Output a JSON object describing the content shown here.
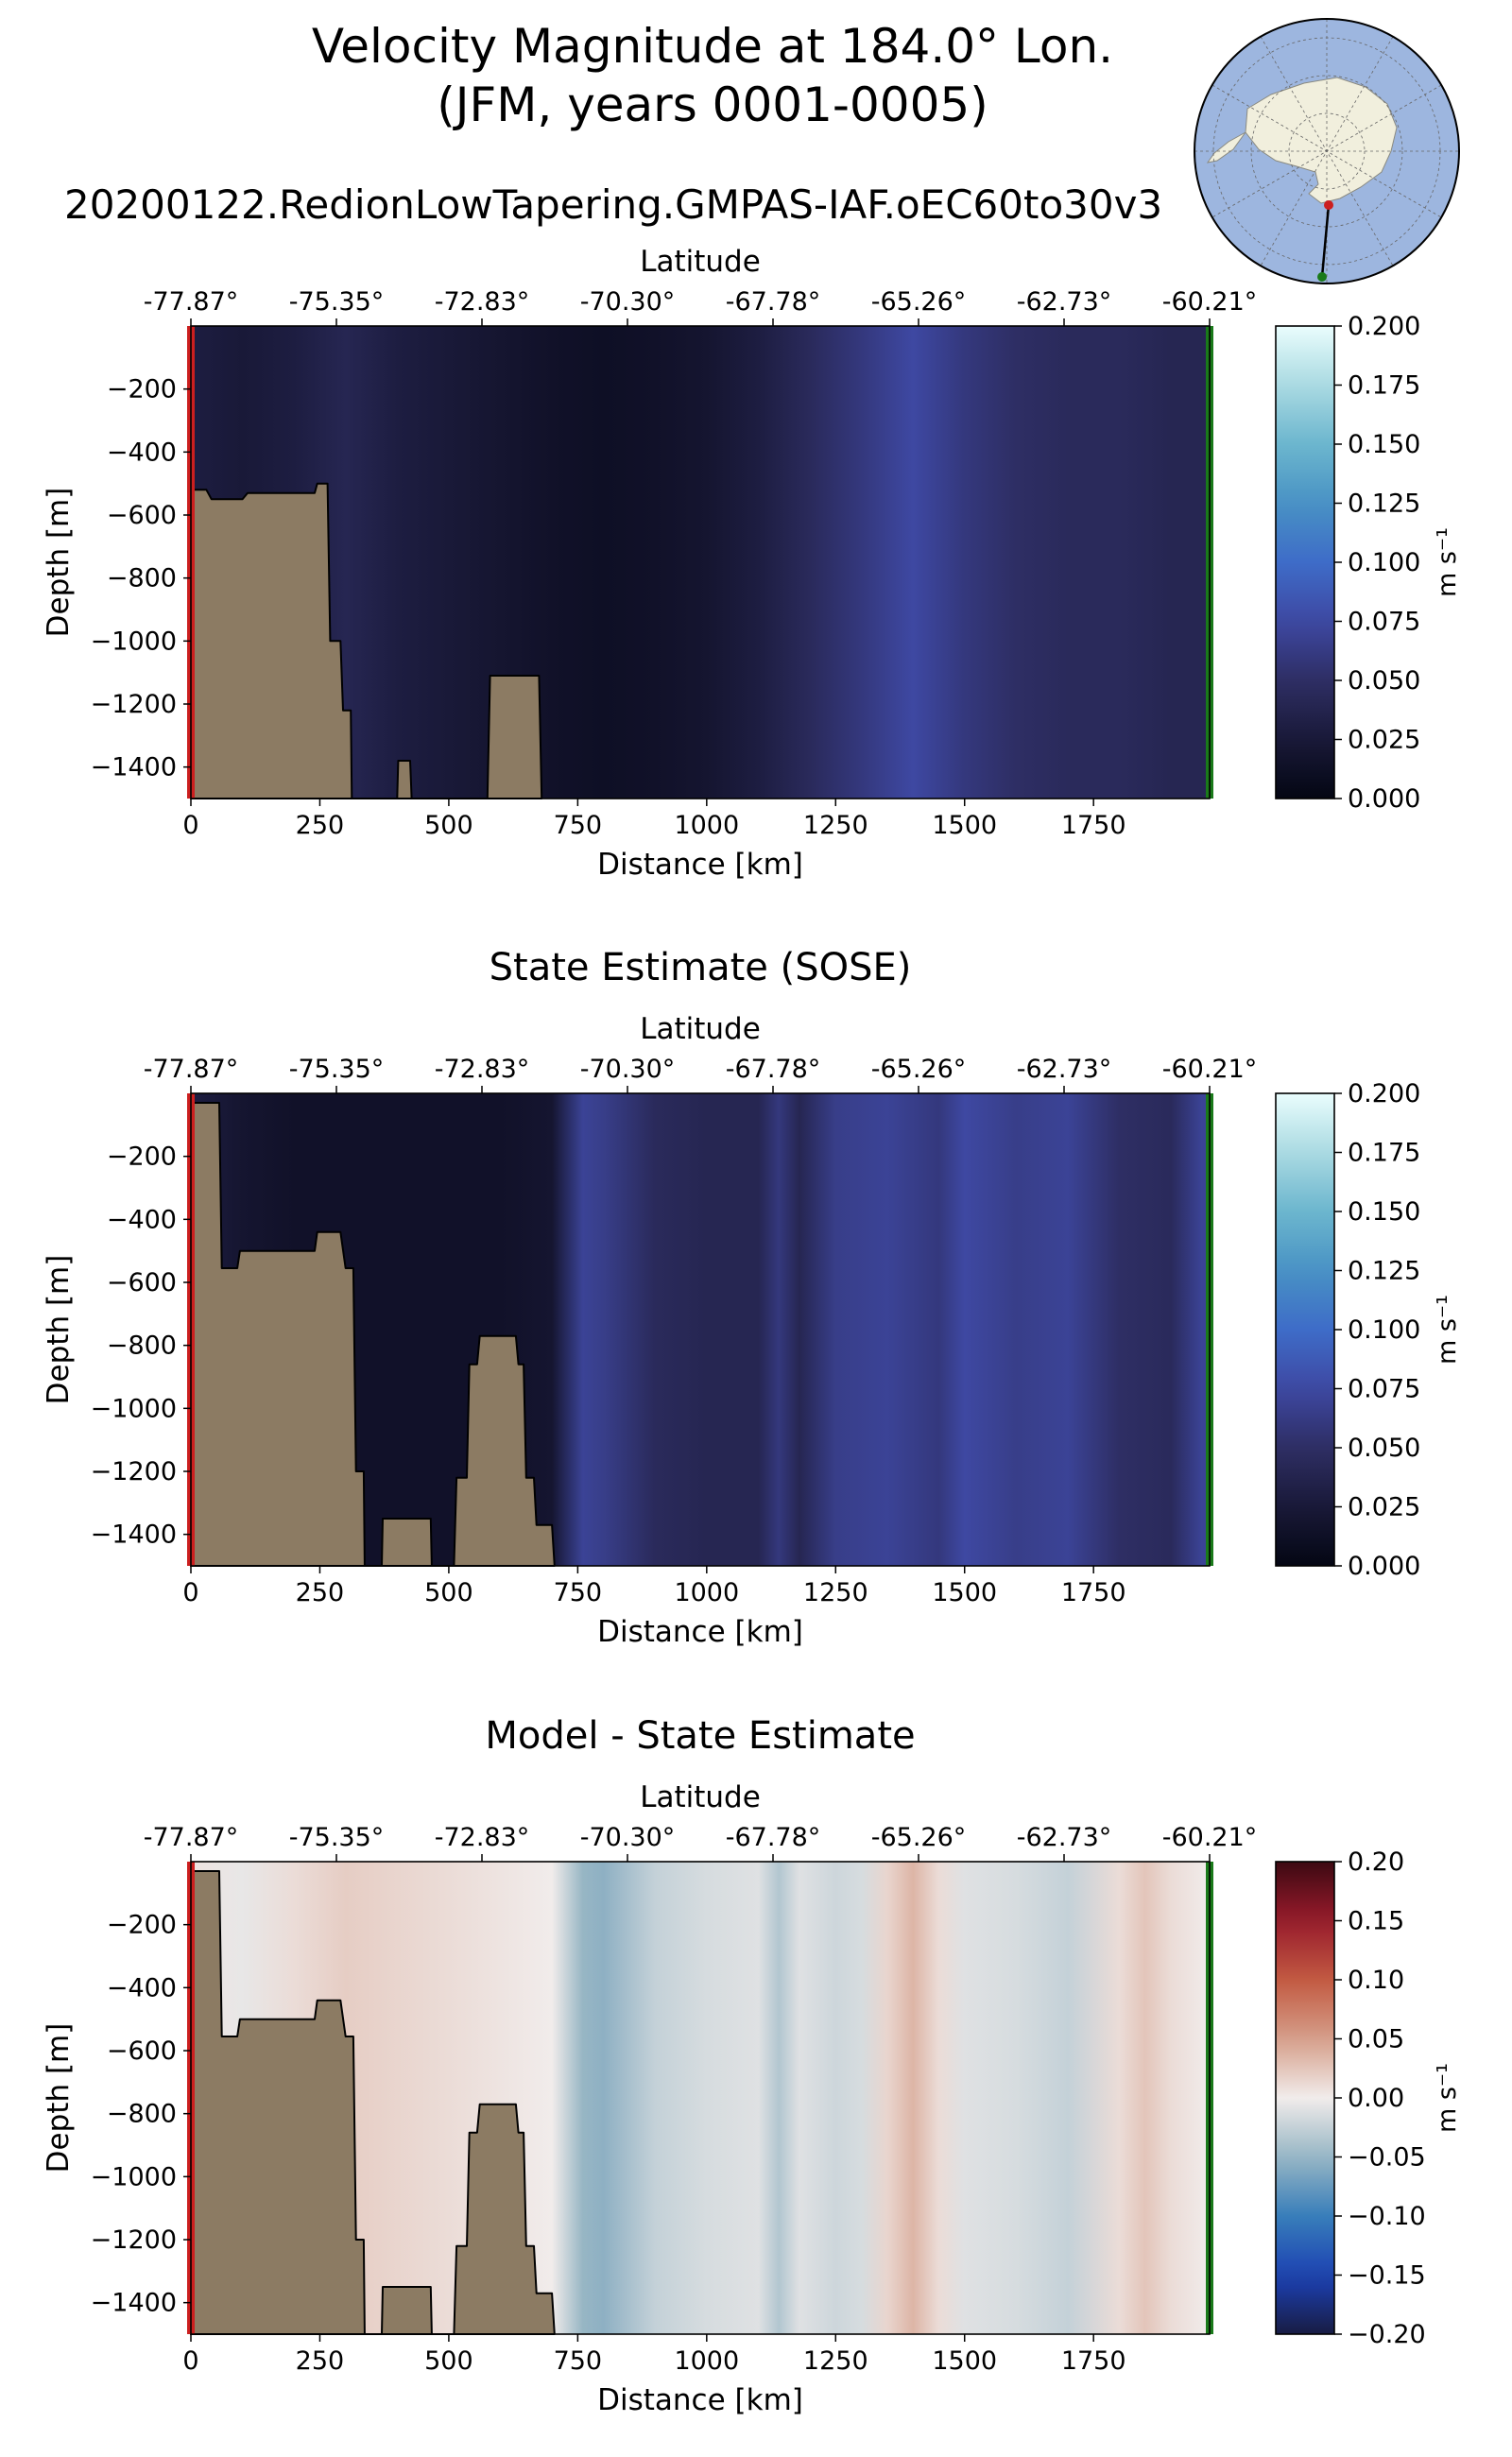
{
  "title": {
    "line1": "Velocity Magnitude at 184.0° Lon.",
    "line2": "(JFM, years 0001-0005)",
    "run_name": "20200122.RedionLowTapering.GMPAS-IAF.oEC60to30v3"
  },
  "colors": {
    "land": "#8c7b63",
    "start_marker": "#cc1f1f",
    "end_marker": "#1a7a1a",
    "globe_ocean": "#9db6df",
    "globe_land": "#f1efdd"
  },
  "chart_data": [
    {
      "type": "heatmap",
      "title": "",
      "xlabel": "Distance [km]",
      "ylabel": "Depth [m]",
      "top_xlabel": "Latitude",
      "xlim": [
        0,
        1975
      ],
      "ylim": [
        -1500,
        0
      ],
      "xticks": [
        "0",
        "250",
        "500",
        "750",
        "1000",
        "1250",
        "1500",
        "1750"
      ],
      "yticks": [
        "−200",
        "−400",
        "−600",
        "−800",
        "−1000",
        "−1200",
        "−1400"
      ],
      "top_ticks": [
        "-77.87°",
        "-75.35°",
        "-72.83°",
        "-70.30°",
        "-67.78°",
        "-65.26°",
        "-62.73°",
        "-60.21°"
      ],
      "colorbar": {
        "label": "m s⁻¹",
        "ticks": [
          "0.000",
          "0.025",
          "0.050",
          "0.075",
          "0.100",
          "0.125",
          "0.150",
          "0.175",
          "0.200"
        ],
        "range": [
          0,
          0.2
        ],
        "colormap": "ice"
      },
      "field_profile": [
        [
          0,
          0.03
        ],
        [
          100,
          0.025
        ],
        [
          200,
          0.03
        ],
        [
          300,
          0.04
        ],
        [
          400,
          0.03
        ],
        [
          500,
          0.025
        ],
        [
          600,
          0.02
        ],
        [
          700,
          0.015
        ],
        [
          800,
          0.012
        ],
        [
          900,
          0.015
        ],
        [
          1000,
          0.02
        ],
        [
          1100,
          0.03
        ],
        [
          1200,
          0.045
        ],
        [
          1300,
          0.06
        ],
        [
          1400,
          0.075
        ],
        [
          1500,
          0.06
        ],
        [
          1600,
          0.05
        ],
        [
          1700,
          0.045
        ],
        [
          1800,
          0.045
        ],
        [
          1900,
          0.04
        ],
        [
          1975,
          0.04
        ]
      ],
      "land_bathymetry": [
        [
          0,
          -520
        ],
        [
          30,
          -520
        ],
        [
          40,
          -550
        ],
        [
          100,
          -550
        ],
        [
          110,
          -530
        ],
        [
          240,
          -530
        ],
        [
          245,
          -500
        ],
        [
          265,
          -500
        ],
        [
          270,
          -1000
        ],
        [
          290,
          -1000
        ],
        [
          295,
          -1220
        ],
        [
          310,
          -1220
        ],
        [
          312,
          -1500
        ],
        [
          400,
          -1500
        ],
        [
          402,
          -1380
        ],
        [
          425,
          -1380
        ],
        [
          428,
          -1500
        ],
        [
          575,
          -1500
        ],
        [
          580,
          -1110
        ],
        [
          675,
          -1110
        ],
        [
          680,
          -1500
        ]
      ]
    },
    {
      "type": "heatmap",
      "title": "State Estimate (SOSE)",
      "xlabel": "Distance [km]",
      "ylabel": "Depth [m]",
      "top_xlabel": "Latitude",
      "xlim": [
        0,
        1975
      ],
      "ylim": [
        -1500,
        0
      ],
      "xticks": [
        "0",
        "250",
        "500",
        "750",
        "1000",
        "1250",
        "1500",
        "1750"
      ],
      "yticks": [
        "−200",
        "−400",
        "−600",
        "−800",
        "−1000",
        "−1200",
        "−1400"
      ],
      "top_ticks": [
        "-77.87°",
        "-75.35°",
        "-72.83°",
        "-70.30°",
        "-67.78°",
        "-65.26°",
        "-62.73°",
        "-60.21°"
      ],
      "colorbar": {
        "label": "m s⁻¹",
        "ticks": [
          "0.000",
          "0.025",
          "0.050",
          "0.075",
          "0.100",
          "0.125",
          "0.150",
          "0.175",
          "0.200"
        ],
        "range": [
          0,
          0.2
        ],
        "colormap": "ice"
      },
      "field_profile": [
        [
          0,
          0.03
        ],
        [
          100,
          0.02
        ],
        [
          200,
          0.015
        ],
        [
          300,
          0.015
        ],
        [
          400,
          0.015
        ],
        [
          500,
          0.015
        ],
        [
          600,
          0.015
        ],
        [
          700,
          0.02
        ],
        [
          760,
          0.07
        ],
        [
          800,
          0.065
        ],
        [
          900,
          0.045
        ],
        [
          1000,
          0.04
        ],
        [
          1100,
          0.04
        ],
        [
          1140,
          0.06
        ],
        [
          1180,
          0.04
        ],
        [
          1250,
          0.065
        ],
        [
          1350,
          0.07
        ],
        [
          1450,
          0.06
        ],
        [
          1500,
          0.075
        ],
        [
          1600,
          0.065
        ],
        [
          1700,
          0.07
        ],
        [
          1800,
          0.05
        ],
        [
          1900,
          0.045
        ],
        [
          1960,
          0.07
        ],
        [
          1975,
          0.07
        ]
      ],
      "land_bathymetry": [
        [
          0,
          -30
        ],
        [
          55,
          -30
        ],
        [
          60,
          -555
        ],
        [
          90,
          -555
        ],
        [
          95,
          -500
        ],
        [
          240,
          -500
        ],
        [
          245,
          -440
        ],
        [
          290,
          -440
        ],
        [
          300,
          -555
        ],
        [
          315,
          -555
        ],
        [
          320,
          -1200
        ],
        [
          335,
          -1200
        ],
        [
          337,
          -1500
        ],
        [
          370,
          -1500
        ],
        [
          372,
          -1350
        ],
        [
          465,
          -1350
        ],
        [
          467,
          -1500
        ],
        [
          510,
          -1500
        ],
        [
          515,
          -1220
        ],
        [
          535,
          -1220
        ],
        [
          540,
          -860
        ],
        [
          555,
          -860
        ],
        [
          560,
          -770
        ],
        [
          630,
          -770
        ],
        [
          635,
          -860
        ],
        [
          645,
          -860
        ],
        [
          650,
          -1220
        ],
        [
          665,
          -1220
        ],
        [
          670,
          -1370
        ],
        [
          700,
          -1370
        ],
        [
          705,
          -1500
        ]
      ]
    },
    {
      "type": "heatmap",
      "title": "Model - State Estimate",
      "xlabel": "Distance [km]",
      "ylabel": "Depth [m]",
      "top_xlabel": "Latitude",
      "xlim": [
        0,
        1975
      ],
      "ylim": [
        -1500,
        0
      ],
      "xticks": [
        "0",
        "250",
        "500",
        "750",
        "1000",
        "1250",
        "1500",
        "1750"
      ],
      "yticks": [
        "−200",
        "−400",
        "−600",
        "−800",
        "−1000",
        "−1200",
        "−1400"
      ],
      "top_ticks": [
        "-77.87°",
        "-75.35°",
        "-72.83°",
        "-70.30°",
        "-67.78°",
        "-65.26°",
        "-62.73°",
        "-60.21°"
      ],
      "colorbar": {
        "label": "m s⁻¹",
        "ticks": [
          "−0.20",
          "−0.15",
          "−0.10",
          "−0.05",
          "0.00",
          "0.05",
          "0.10",
          "0.15",
          "0.20"
        ],
        "range": [
          -0.2,
          0.2
        ],
        "colormap": "balance"
      },
      "field_profile": [
        [
          0,
          0.005
        ],
        [
          100,
          -0.005
        ],
        [
          200,
          0.01
        ],
        [
          300,
          0.02
        ],
        [
          400,
          0.015
        ],
        [
          500,
          0.01
        ],
        [
          600,
          0.005
        ],
        [
          700,
          0.0
        ],
        [
          760,
          -0.05
        ],
        [
          800,
          -0.055
        ],
        [
          900,
          -0.025
        ],
        [
          1000,
          -0.015
        ],
        [
          1100,
          -0.01
        ],
        [
          1140,
          -0.035
        ],
        [
          1180,
          -0.01
        ],
        [
          1250,
          -0.02
        ],
        [
          1300,
          -0.015
        ],
        [
          1350,
          0.015
        ],
        [
          1400,
          0.035
        ],
        [
          1450,
          0.01
        ],
        [
          1500,
          -0.01
        ],
        [
          1600,
          -0.015
        ],
        [
          1700,
          -0.025
        ],
        [
          1800,
          0.01
        ],
        [
          1850,
          0.025
        ],
        [
          1900,
          0.01
        ],
        [
          1975,
          0.0
        ]
      ],
      "land_bathymetry": [
        [
          0,
          -30
        ],
        [
          55,
          -30
        ],
        [
          60,
          -555
        ],
        [
          90,
          -555
        ],
        [
          95,
          -500
        ],
        [
          240,
          -500
        ],
        [
          245,
          -440
        ],
        [
          290,
          -440
        ],
        [
          300,
          -555
        ],
        [
          315,
          -555
        ],
        [
          320,
          -1200
        ],
        [
          335,
          -1200
        ],
        [
          337,
          -1500
        ],
        [
          370,
          -1500
        ],
        [
          372,
          -1350
        ],
        [
          465,
          -1350
        ],
        [
          467,
          -1500
        ],
        [
          510,
          -1500
        ],
        [
          515,
          -1220
        ],
        [
          535,
          -1220
        ],
        [
          540,
          -860
        ],
        [
          555,
          -860
        ],
        [
          560,
          -770
        ],
        [
          630,
          -770
        ],
        [
          635,
          -860
        ],
        [
          645,
          -860
        ],
        [
          650,
          -1220
        ],
        [
          665,
          -1220
        ],
        [
          670,
          -1370
        ],
        [
          700,
          -1370
        ],
        [
          705,
          -1500
        ]
      ]
    }
  ]
}
